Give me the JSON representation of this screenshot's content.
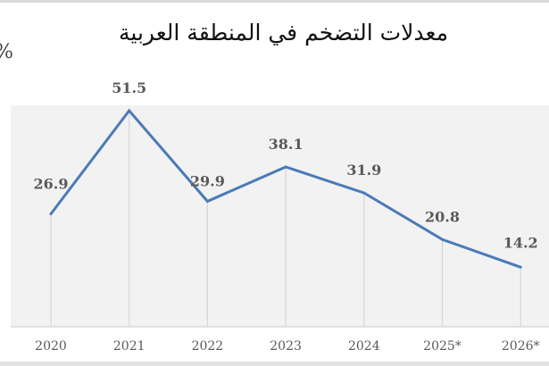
{
  "chart_data": {
    "type": "line",
    "title": "معدلات التضخم في المنطقة العربية",
    "ylabel": "%",
    "xlabel": "",
    "categories": [
      "2020",
      "2021",
      "2022",
      "2023",
      "2024",
      "2025*",
      "2026*"
    ],
    "values": [
      26.9,
      51.5,
      29.9,
      38.1,
      31.9,
      20.8,
      14.2
    ],
    "ylim": [
      0,
      53
    ],
    "grid": "vertical",
    "legend": "none",
    "colors": {
      "line": "#4a7ab8",
      "plot_bg": "#f2f2f2",
      "grid": "#d6d6d6",
      "label": "#595959"
    }
  }
}
